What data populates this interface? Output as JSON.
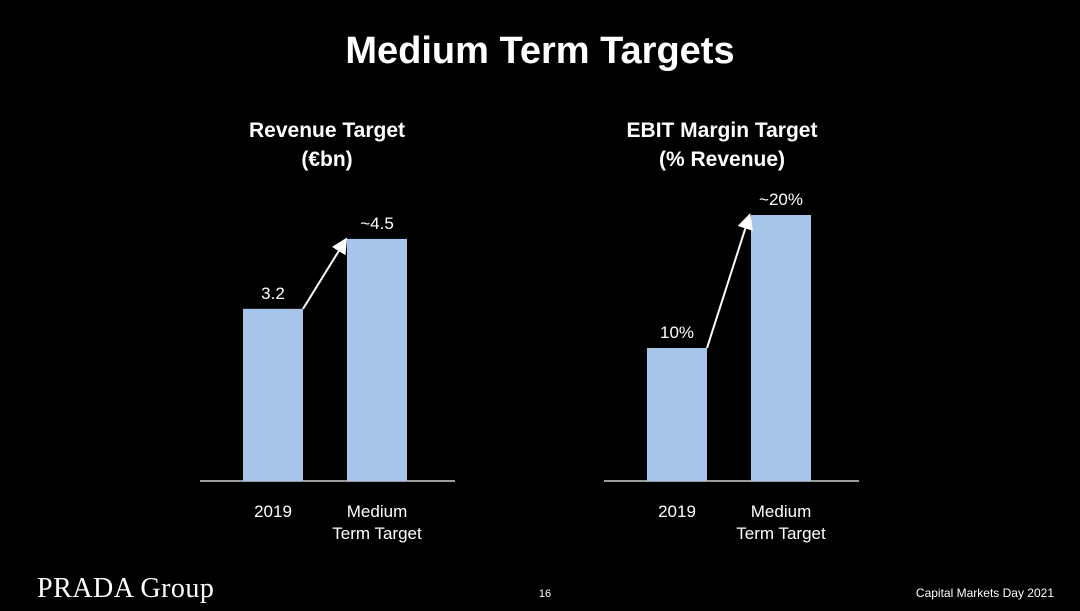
{
  "slide": {
    "title": "Medium Term Targets",
    "page_number": "16",
    "logo_text": "PRADA Group",
    "footer_right": "Capital Markets Day 2021"
  },
  "colors": {
    "background": "#000000",
    "bar": "#a6c5e8",
    "text": "#ffffff",
    "axis": "#cfcfcf"
  },
  "chart_data": [
    {
      "type": "bar",
      "title_lines": [
        "Revenue Target",
        "(€bn)"
      ],
      "categories": [
        [
          "2019"
        ],
        [
          "Medium",
          "Term Target"
        ]
      ],
      "values": [
        3.2,
        4.5
      ],
      "data_labels": [
        "3.2",
        "~4.5"
      ],
      "ylim": [
        0,
        5.0
      ],
      "grid": false,
      "arrow": "increase arrow from 2019 bar to Medium Term Target bar"
    },
    {
      "type": "bar",
      "title_lines": [
        "EBIT Margin Target",
        "(% Revenue)"
      ],
      "categories": [
        [
          "2019"
        ],
        [
          "Medium",
          "Term Target"
        ]
      ],
      "values": [
        10,
        20
      ],
      "data_labels": [
        "10%",
        "~20%"
      ],
      "ylim": [
        0,
        20.3
      ],
      "grid": false,
      "arrow": "increase arrow from 2019 bar to Medium Term Target bar"
    }
  ]
}
